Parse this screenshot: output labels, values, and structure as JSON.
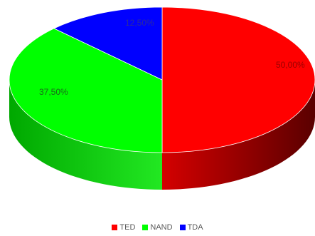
{
  "chart_data": {
    "type": "pie",
    "style": "3d",
    "legend_position": "bottom",
    "slices": [
      {
        "label": "TED",
        "value": 50.0,
        "display": "50,00%",
        "color": "#ff0000"
      },
      {
        "label": "NAND",
        "value": 37.5,
        "display": "37,50%",
        "color": "#00ff00"
      },
      {
        "label": "TDA",
        "value": 12.5,
        "display": "12,50%",
        "color": "#0000ff"
      }
    ]
  }
}
